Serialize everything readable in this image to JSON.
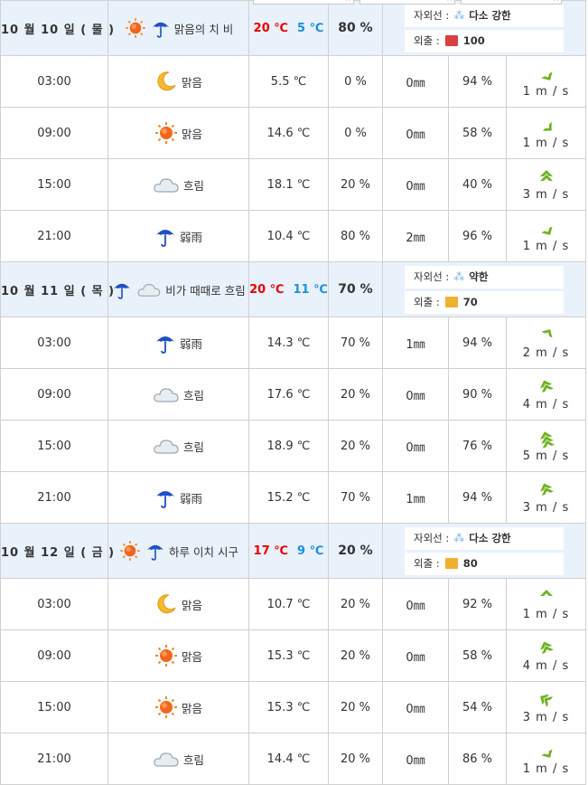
{
  "days": [
    {
      "date_label": "10 월 10 일 ( 물 )",
      "weather_desc": "맑음의 치 비",
      "day_icons": [
        "sun-icon",
        "umbrella-icon"
      ],
      "temp_max": "20 ℃",
      "temp_min": "5 ℃",
      "rain_prob": "80 %",
      "uv_label": "자외선 :",
      "uv_value": "다소 강한",
      "out_label": "외출 :",
      "out_value": "100",
      "out_color": "#d94040",
      "hours": [
        {
          "time": "03:00",
          "icon": "moon-icon",
          "desc": "맑음",
          "temp": "5.5 ℃",
          "prob": "0 %",
          "rain": "0㎜",
          "humidity": "94 %",
          "wind": "1 m / s",
          "wind_dir": 150
        },
        {
          "time": "09:00",
          "icon": "sun-icon",
          "desc": "맑음",
          "temp": "14.6 ℃",
          "prob": "0 %",
          "rain": "0㎜",
          "humidity": "58 %",
          "wind": "1 m / s",
          "wind_dir": 135
        },
        {
          "time": "15:00",
          "icon": "cloud-icon",
          "desc": "흐림",
          "temp": "18.1 ℃",
          "prob": "20 %",
          "rain": "0㎜",
          "humidity": "40 %",
          "wind": "3 m / s",
          "wind_dir": 0
        },
        {
          "time": "21:00",
          "icon": "umbrella-icon",
          "desc": "弱雨",
          "temp": "10.4 ℃",
          "prob": "80 %",
          "rain": "2㎜",
          "humidity": "96 %",
          "wind": "1 m / s",
          "wind_dir": 150
        }
      ]
    },
    {
      "date_label": "10 월 11 일 ( 목 )",
      "weather_desc": "비가 때때로 흐림",
      "day_icons": [
        "umbrella-icon",
        "cloud-icon"
      ],
      "temp_max": "20 ℃",
      "temp_min": "11 ℃",
      "rain_prob": "70 %",
      "uv_label": "자외선 :",
      "uv_value": "약한",
      "out_label": "외출 :",
      "out_value": "70",
      "out_color": "#f0b030",
      "hours": [
        {
          "time": "03:00",
          "icon": "umbrella-icon",
          "desc": "弱雨",
          "temp": "14.3 ℃",
          "prob": "70 %",
          "rain": "1㎜",
          "humidity": "94 %",
          "wind": "2 m / s",
          "wind_dir": 30
        },
        {
          "time": "09:00",
          "icon": "cloud-icon",
          "desc": "흐림",
          "temp": "17.6 ℃",
          "prob": "20 %",
          "rain": "0㎜",
          "humidity": "90 %",
          "wind": "4 m / s",
          "wind_dir": -20
        },
        {
          "time": "15:00",
          "icon": "cloud-icon",
          "desc": "흐림",
          "temp": "18.9 ℃",
          "prob": "20 %",
          "rain": "0㎜",
          "humidity": "76 %",
          "wind": "5 m / s",
          "wind_dir": -15
        },
        {
          "time": "21:00",
          "icon": "umbrella-icon",
          "desc": "弱雨",
          "temp": "15.2 ℃",
          "prob": "70 %",
          "rain": "1㎜",
          "humidity": "94 %",
          "wind": "3 m / s",
          "wind_dir": -20
        }
      ]
    },
    {
      "date_label": "10 월 12 일 ( 금 )",
      "weather_desc": "하루 이치 시구",
      "day_icons": [
        "sun-icon",
        "umbrella-icon"
      ],
      "temp_max": "17 ℃",
      "temp_min": "9 ℃",
      "rain_prob": "20 %",
      "uv_label": "자외선 :",
      "uv_value": "다소 강한",
      "out_label": "외출 :",
      "out_value": "80",
      "out_color": "#f0b030",
      "hours": [
        {
          "time": "03:00",
          "icon": "moon-icon",
          "desc": "맑음",
          "temp": "10.7 ℃",
          "prob": "20 %",
          "rain": "0㎜",
          "humidity": "92 %",
          "wind": "1 m / s",
          "wind_dir": 0
        },
        {
          "time": "09:00",
          "icon": "sun-icon",
          "desc": "맑음",
          "temp": "15.3 ℃",
          "prob": "20 %",
          "rain": "0㎜",
          "humidity": "58 %",
          "wind": "4 m / s",
          "wind_dir": -20
        },
        {
          "time": "15:00",
          "icon": "sun-icon",
          "desc": "맑음",
          "temp": "15.3 ℃",
          "prob": "20 %",
          "rain": "0㎜",
          "humidity": "54 %",
          "wind": "3 m / s",
          "wind_dir": -60
        },
        {
          "time": "21:00",
          "icon": "cloud-icon",
          "desc": "흐림",
          "temp": "14.4 ℃",
          "prob": "20 %",
          "rain": "0㎜",
          "humidity": "86 %",
          "wind": "1 m / s",
          "wind_dir": 150
        }
      ]
    }
  ],
  "colors": {
    "header_bg": "#e9f1fb",
    "temp_max": "#e00000",
    "temp_min": "#1d8fe0",
    "wind_arrow": "#6fb324",
    "border": "#d0d0d0"
  }
}
